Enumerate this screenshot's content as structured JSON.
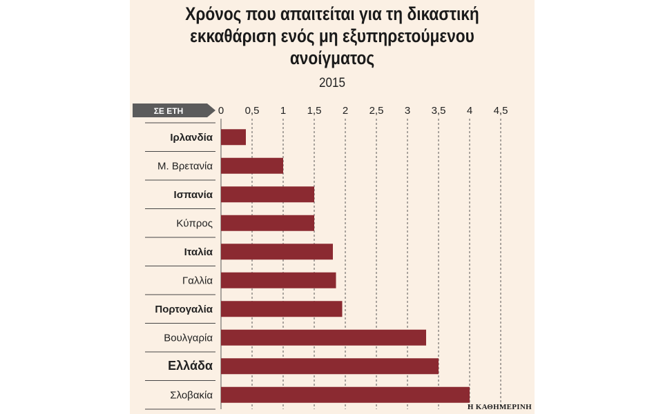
{
  "chart_data": {
    "type": "bar",
    "orientation": "horizontal",
    "title_lines": [
      "Χρόνος που απαιτείται για τη δικαστική",
      "εκκαθάριση ενός μη εξυπηρετούμενου",
      "ανοίγματος"
    ],
    "subtitle": "2015",
    "unit_label": "ΣΕ ΕΤΗ",
    "xlim": [
      0,
      4.5
    ],
    "ticks": [
      {
        "value": 0,
        "label": "0"
      },
      {
        "value": 0.5,
        "label": "0,5"
      },
      {
        "value": 1,
        "label": "1"
      },
      {
        "value": 1.5,
        "label": "1,5"
      },
      {
        "value": 2,
        "label": "2"
      },
      {
        "value": 2.5,
        "label": "2,5"
      },
      {
        "value": 3,
        "label": "3"
      },
      {
        "value": 3.5,
        "label": "3,5"
      },
      {
        "value": 4,
        "label": "4"
      },
      {
        "value": 4.5,
        "label": "4,5"
      }
    ],
    "categories": [
      {
        "name": "Ιρλανδία",
        "value": 0.4,
        "emphasis": "bold"
      },
      {
        "name": "Μ. Βρετανία",
        "value": 1.0,
        "emphasis": "normal"
      },
      {
        "name": "Ισπανία",
        "value": 1.5,
        "emphasis": "bold"
      },
      {
        "name": "Κύπρος",
        "value": 1.5,
        "emphasis": "normal"
      },
      {
        "name": "Ιταλία",
        "value": 1.8,
        "emphasis": "bold"
      },
      {
        "name": "Γαλλία",
        "value": 1.85,
        "emphasis": "normal"
      },
      {
        "name": "Πορτογαλία",
        "value": 1.95,
        "emphasis": "bold"
      },
      {
        "name": "Βουλγαρία",
        "value": 3.3,
        "emphasis": "normal"
      },
      {
        "name": "Ελλάδα",
        "value": 3.5,
        "emphasis": "extra-bold"
      },
      {
        "name": "Σλοβακία",
        "value": 4.0,
        "emphasis": "normal"
      }
    ],
    "bar_color": "#8b2a31",
    "grid": "dashed-vertical",
    "source": "Η ΚΑΘΗΜΕΡΙΝΗ"
  }
}
